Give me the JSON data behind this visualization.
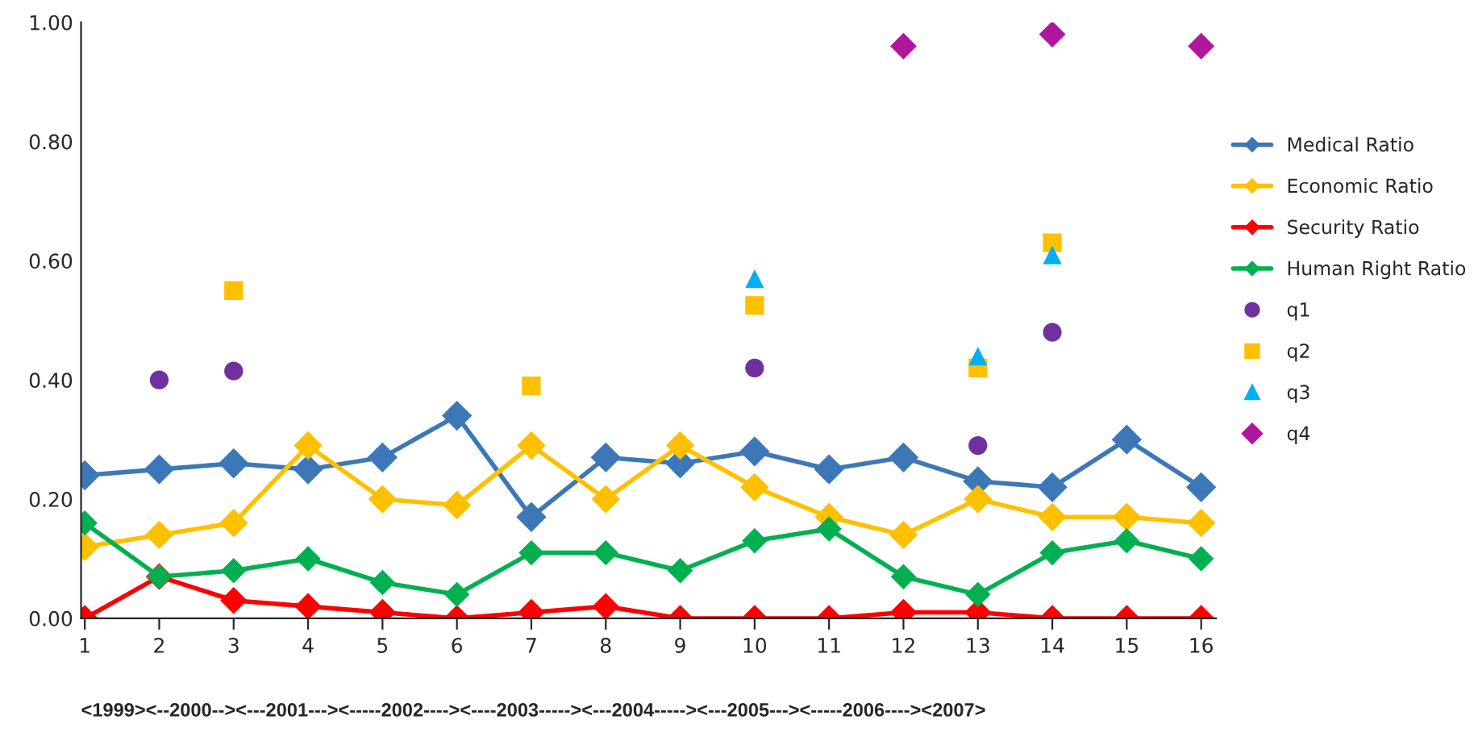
{
  "chart_data": {
    "type": "line",
    "categories": [
      "1",
      "2",
      "3",
      "4",
      "5",
      "6",
      "7",
      "8",
      "9",
      "10",
      "11",
      "12",
      "13",
      "14",
      "15",
      "16"
    ],
    "series": [
      {
        "name": "Medical Ratio",
        "marker": "diamond",
        "color": "#3c78b8",
        "values": [
          0.24,
          0.25,
          0.26,
          0.25,
          0.27,
          0.34,
          0.17,
          0.27,
          0.26,
          0.28,
          0.25,
          0.27,
          0.23,
          0.22,
          0.3,
          0.22
        ]
      },
      {
        "name": "Economic Ratio",
        "marker": "diamond",
        "color": "#ffc000",
        "values": [
          0.12,
          0.14,
          0.16,
          0.29,
          0.2,
          0.19,
          0.29,
          0.2,
          0.29,
          0.22,
          0.17,
          0.14,
          0.2,
          0.17,
          0.17,
          0.16
        ]
      },
      {
        "name": "Security Ratio",
        "marker": "diamond",
        "color": "#ff0000",
        "values": [
          0,
          0.07,
          0.03,
          0.02,
          0.01,
          0,
          0.01,
          0.02,
          0,
          0,
          0,
          0.01,
          0.01,
          0,
          0,
          0
        ]
      },
      {
        "name": "Human Right Ratio",
        "marker": "diamond",
        "color": "#00b050",
        "values": [
          0.16,
          0.07,
          0.08,
          0.1,
          0.06,
          0.04,
          0.11,
          0.11,
          0.08,
          0.13,
          0.15,
          0.07,
          0.04,
          0.11,
          0.13,
          0.1
        ]
      },
      {
        "name": "q1",
        "type": "scatter",
        "marker": "circle",
        "color": "#7030a0",
        "values": [
          null,
          0.4,
          0.415,
          null,
          null,
          null,
          null,
          null,
          null,
          0.42,
          null,
          null,
          0.29,
          0.48,
          null,
          null
        ]
      },
      {
        "name": "q2",
        "type": "scatter",
        "marker": "square",
        "color": "#ffc000",
        "values": [
          null,
          null,
          0.55,
          null,
          null,
          null,
          0.39,
          null,
          null,
          0.525,
          null,
          null,
          0.42,
          0.63,
          null,
          null
        ]
      },
      {
        "name": "q3",
        "type": "scatter",
        "marker": "triangle",
        "color": "#00b0f0",
        "values": [
          null,
          null,
          null,
          null,
          null,
          null,
          null,
          null,
          null,
          0.57,
          null,
          null,
          0.44,
          0.61,
          null,
          null
        ]
      },
      {
        "name": "q4",
        "type": "scatter",
        "marker": "diamond",
        "color": "#b0179f",
        "values": [
          null,
          null,
          null,
          null,
          null,
          null,
          null,
          null,
          null,
          null,
          null,
          0.96,
          null,
          0.98,
          null,
          0.96
        ]
      }
    ],
    "ylim": [
      0,
      1
    ],
    "yticks": [
      {
        "value": 0,
        "label": "0.00"
      },
      {
        "value": 0.2,
        "label": "0.20"
      },
      {
        "value": 0.4,
        "label": "0.40"
      },
      {
        "value": 0.6,
        "label": "0.60"
      },
      {
        "value": 0.8,
        "label": "0.80"
      },
      {
        "value": 1,
        "label": "1.00"
      }
    ],
    "grid": false,
    "legend": "right",
    "annotations": [
      "<1999><--2000--><---2001---><-----2002----><----2003-----><---2004-----><---2005---><-----2006----><2007>"
    ]
  }
}
